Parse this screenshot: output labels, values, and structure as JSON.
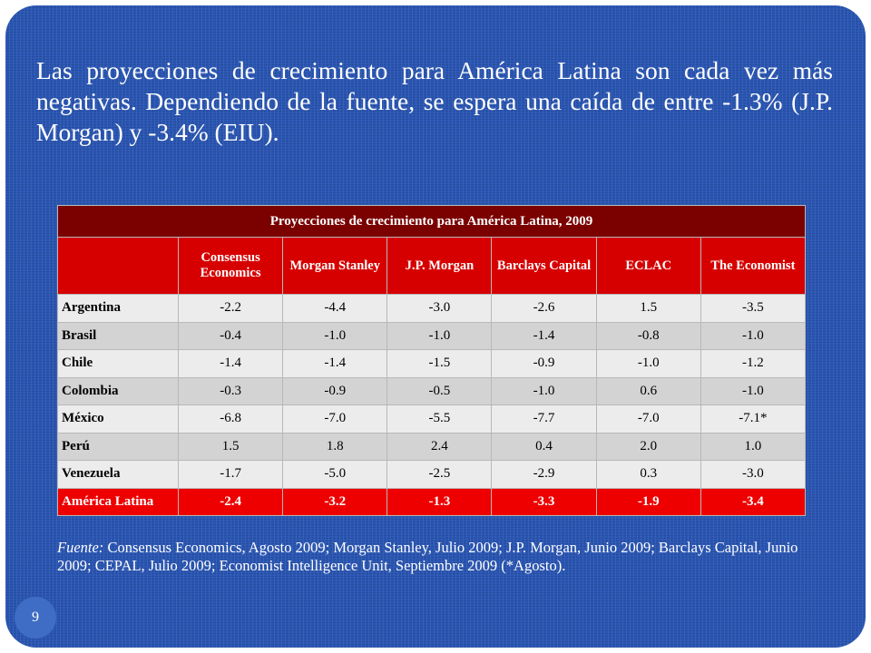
{
  "intro_text": "Las proyecciones de crecimiento para América Latina son cada vez más negativas. Dependiendo de la fuente, se espera una caída de entre -1.3% (J.P. Morgan) y -3.4% (EIU).",
  "table": {
    "title": "Proyecciones de crecimiento para América Latina, 2009",
    "columns": [
      "Consensus Economics",
      "Morgan Stanley",
      "J.P. Morgan",
      "Barclays Capital",
      "ECLAC",
      "The Economist"
    ],
    "rows": [
      {
        "country": "Argentina",
        "values": [
          "-2.2",
          "-4.4",
          "-3.0",
          "-2.6",
          "1.5",
          "-3.5"
        ]
      },
      {
        "country": "Brasil",
        "values": [
          "-0.4",
          "-1.0",
          "-1.0",
          "-1.4",
          "-0.8",
          "-1.0"
        ]
      },
      {
        "country": "Chile",
        "values": [
          "-1.4",
          "-1.4",
          "-1.5",
          "-0.9",
          "-1.0",
          "-1.2"
        ]
      },
      {
        "country": "Colombia",
        "values": [
          "-0.3",
          "-0.9",
          "-0.5",
          "-1.0",
          "0.6",
          "-1.0"
        ]
      },
      {
        "country": "México",
        "values": [
          "-6.8",
          "-7.0",
          "-5.5",
          "-7.7",
          "-7.0",
          "-7.1*"
        ]
      },
      {
        "country": "Perú",
        "values": [
          "1.5",
          "1.8",
          "2.4",
          "0.4",
          "2.0",
          "1.0"
        ]
      },
      {
        "country": "Venezuela",
        "values": [
          "-1.7",
          "-5.0",
          "-2.5",
          "-2.9",
          "0.3",
          "-3.0"
        ]
      }
    ],
    "total": {
      "country": "América Latina",
      "values": [
        "-2.4",
        "-3.2",
        "-1.3",
        "-3.3",
        "-1.9",
        "-3.4"
      ]
    }
  },
  "source": {
    "label": "Fuente:",
    "text": " Consensus Economics, Agosto 2009; Morgan Stanley, Julio 2009; J.P. Morgan, Junio 2009; Barclays Capital, Junio 2009; CEPAL, Julio 2009; Economist Intelligence Unit, Septiembre 2009 (*Agosto)."
  },
  "page_number": "9",
  "colors": {
    "background": "#2a56b2",
    "title_row": "#7b0000",
    "header_row": "#d60000",
    "total_row": "#ee0000"
  }
}
